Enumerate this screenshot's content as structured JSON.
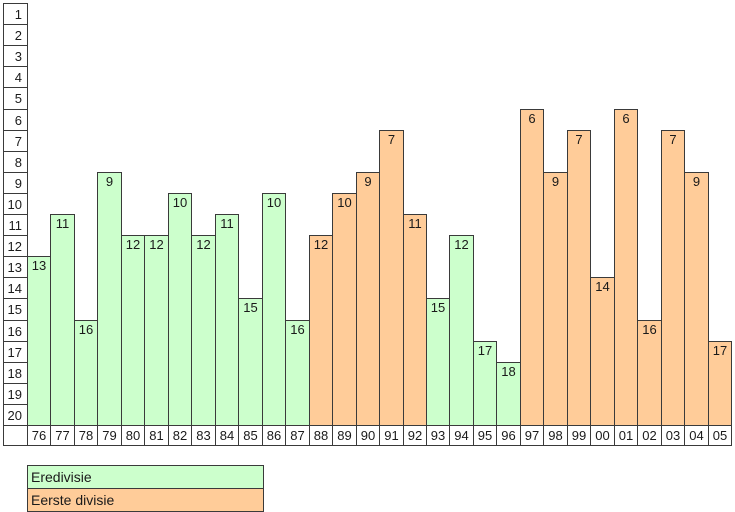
{
  "chart_data": {
    "type": "bar",
    "title": "",
    "xlabel": "",
    "ylabel": "",
    "categories": [
      "76",
      "77",
      "78",
      "79",
      "80",
      "81",
      "82",
      "83",
      "84",
      "85",
      "86",
      "87",
      "88",
      "89",
      "90",
      "91",
      "92",
      "93",
      "94",
      "95",
      "96",
      "97",
      "98",
      "99",
      "00",
      "01",
      "02",
      "03",
      "04",
      "05"
    ],
    "values": [
      13,
      11,
      16,
      9,
      12,
      12,
      10,
      12,
      11,
      15,
      10,
      16,
      12,
      10,
      9,
      7,
      11,
      15,
      12,
      17,
      18,
      6,
      9,
      7,
      14,
      6,
      16,
      7,
      9,
      17
    ],
    "league": [
      "Eredivisie",
      "Eredivisie",
      "Eredivisie",
      "Eredivisie",
      "Eredivisie",
      "Eredivisie",
      "Eredivisie",
      "Eredivisie",
      "Eredivisie",
      "Eredivisie",
      "Eredivisie",
      "Eredivisie",
      "Eerste divisie",
      "Eerste divisie",
      "Eerste divisie",
      "Eerste divisie",
      "Eerste divisie",
      "Eredivisie",
      "Eredivisie",
      "Eredivisie",
      "Eredivisie",
      "Eerste divisie",
      "Eerste divisie",
      "Eerste divisie",
      "Eerste divisie",
      "Eerste divisie",
      "Eerste divisie",
      "Eerste divisie",
      "Eerste divisie",
      "Eerste divisie"
    ],
    "bar_labels_visible": true,
    "y_axis": {
      "inverted": true,
      "min": 1,
      "max": 20,
      "ticks": [
        "1",
        "2",
        "3",
        "4",
        "5",
        "6",
        "7",
        "8",
        "9",
        "10",
        "11",
        "12",
        "13",
        "14",
        "15",
        "16",
        "17",
        "18",
        "19",
        "20"
      ]
    },
    "grid": false,
    "legend_position": "bottom-left",
    "legend": [
      {
        "label": "Eredivisie",
        "color": "#ccffcc"
      },
      {
        "label": "Eerste divisie",
        "color": "#ffcc99"
      }
    ],
    "colors": {
      "Eredivisie": "#ccffcc",
      "Eerste divisie": "#ffcc99",
      "border": "#3a3a3a",
      "background": "#ffffff",
      "text": "#1a1a1a"
    }
  }
}
